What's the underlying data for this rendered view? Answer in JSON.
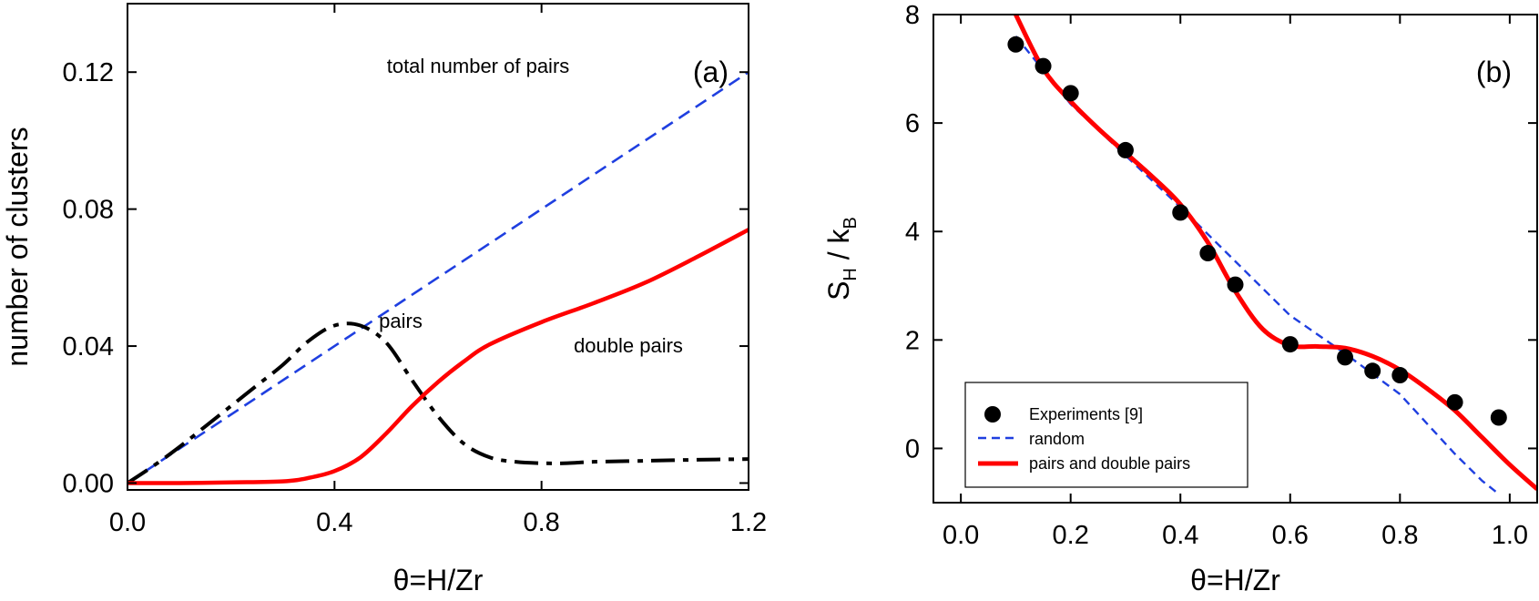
{
  "figure": {
    "panels": [
      "(a)",
      "(b)"
    ]
  },
  "chart_data": [
    {
      "type": "line",
      "panel_label": "(a)",
      "title": "",
      "xlabel": "θ=H/Zr",
      "ylabel": "number of clusters",
      "xlim": [
        0.0,
        1.2
      ],
      "ylim": [
        -0.002,
        0.14
      ],
      "xticks": [
        0.0,
        0.4,
        0.8,
        1.2
      ],
      "xtick_labels": [
        "0.0",
        "0.4",
        "0.8",
        "1.2"
      ],
      "yticks": [
        0.0,
        0.04,
        0.08,
        0.12
      ],
      "ytick_labels": [
        "0.00",
        "0.04",
        "0.08",
        "0.12"
      ],
      "grid": false,
      "series": [
        {
          "name": "total number of pairs",
          "style": "dashed",
          "color": "#1f3fe0",
          "x": [
            0.0,
            0.2,
            0.4,
            0.6,
            0.8,
            1.0,
            1.2
          ],
          "y": [
            0.0,
            0.02,
            0.04,
            0.06,
            0.08,
            0.1,
            0.12
          ]
        },
        {
          "name": "pairs",
          "style": "dash-dot",
          "color": "#000000",
          "x": [
            0.0,
            0.05,
            0.1,
            0.15,
            0.2,
            0.25,
            0.3,
            0.35,
            0.4,
            0.45,
            0.5,
            0.55,
            0.6,
            0.65,
            0.7,
            0.75,
            0.8,
            0.85,
            0.9,
            1.0,
            1.1,
            1.2
          ],
          "y": [
            0.0,
            0.005,
            0.0105,
            0.0165,
            0.0225,
            0.0285,
            0.0345,
            0.0415,
            0.046,
            0.046,
            0.041,
            0.03,
            0.0195,
            0.0115,
            0.0075,
            0.0062,
            0.0058,
            0.0058,
            0.0062,
            0.0065,
            0.0068,
            0.007
          ]
        },
        {
          "name": "double pairs",
          "style": "solid",
          "color": "#ff0000",
          "x": [
            0.0,
            0.1,
            0.2,
            0.3,
            0.35,
            0.4,
            0.45,
            0.5,
            0.55,
            0.6,
            0.65,
            0.7,
            0.8,
            0.9,
            1.0,
            1.1,
            1.2
          ],
          "y": [
            0.0,
            0.0,
            0.0002,
            0.0005,
            0.0015,
            0.0035,
            0.0075,
            0.0145,
            0.0225,
            0.0295,
            0.0355,
            0.0405,
            0.047,
            0.0525,
            0.0585,
            0.066,
            0.074
          ]
        }
      ],
      "annotations": [
        "total number of pairs",
        "pairs",
        "double pairs"
      ]
    },
    {
      "type": "scatter+line",
      "panel_label": "(b)",
      "title": "",
      "xlabel": "θ=H/Zr",
      "ylabel_main": "S",
      "ylabel_sub1": "H",
      "ylabel_mid": " / k",
      "ylabel_sub2": "B",
      "xlim": [
        -0.05,
        1.05
      ],
      "ylim": [
        -1.0,
        8.0
      ],
      "xticks": [
        0.0,
        0.2,
        0.4,
        0.6,
        0.8,
        1.0
      ],
      "xtick_labels": [
        "0.0",
        "0.2",
        "0.4",
        "0.6",
        "0.8",
        "1.0"
      ],
      "yticks": [
        0,
        2,
        4,
        6,
        8
      ],
      "ytick_labels": [
        "0",
        "2",
        "4",
        "6",
        "8"
      ],
      "grid": false,
      "legend_position": "bottom-left",
      "series": [
        {
          "name": "Experiments [9]",
          "style": "markers",
          "color": "#000000",
          "x": [
            0.1,
            0.15,
            0.2,
            0.3,
            0.4,
            0.45,
            0.5,
            0.6,
            0.7,
            0.75,
            0.8,
            0.9,
            0.98
          ],
          "y": [
            7.45,
            7.05,
            6.55,
            5.5,
            4.35,
            3.6,
            3.02,
            1.92,
            1.68,
            1.43,
            1.35,
            0.85,
            0.57
          ]
        },
        {
          "name": "random",
          "style": "dashed",
          "color": "#1f3fe0",
          "x": [
            0.1,
            0.2,
            0.3,
            0.4,
            0.5,
            0.6,
            0.7,
            0.8,
            0.85,
            0.9,
            0.95,
            0.975
          ],
          "y": [
            7.6,
            6.35,
            5.4,
            4.45,
            3.45,
            2.45,
            1.75,
            1.0,
            0.45,
            -0.1,
            -0.6,
            -0.8
          ]
        },
        {
          "name": "pairs and double pairs",
          "style": "solid",
          "color": "#ff0000",
          "x": [
            0.1,
            0.15,
            0.2,
            0.25,
            0.3,
            0.35,
            0.4,
            0.45,
            0.5,
            0.55,
            0.6,
            0.65,
            0.7,
            0.75,
            0.8,
            0.85,
            0.9,
            0.95,
            1.0,
            1.05
          ],
          "y": [
            8.0,
            7.0,
            6.4,
            5.9,
            5.45,
            5.0,
            4.5,
            3.8,
            2.9,
            2.2,
            1.9,
            1.88,
            1.85,
            1.7,
            1.45,
            1.1,
            0.7,
            0.2,
            -0.3,
            -0.75
          ]
        }
      ]
    }
  ]
}
